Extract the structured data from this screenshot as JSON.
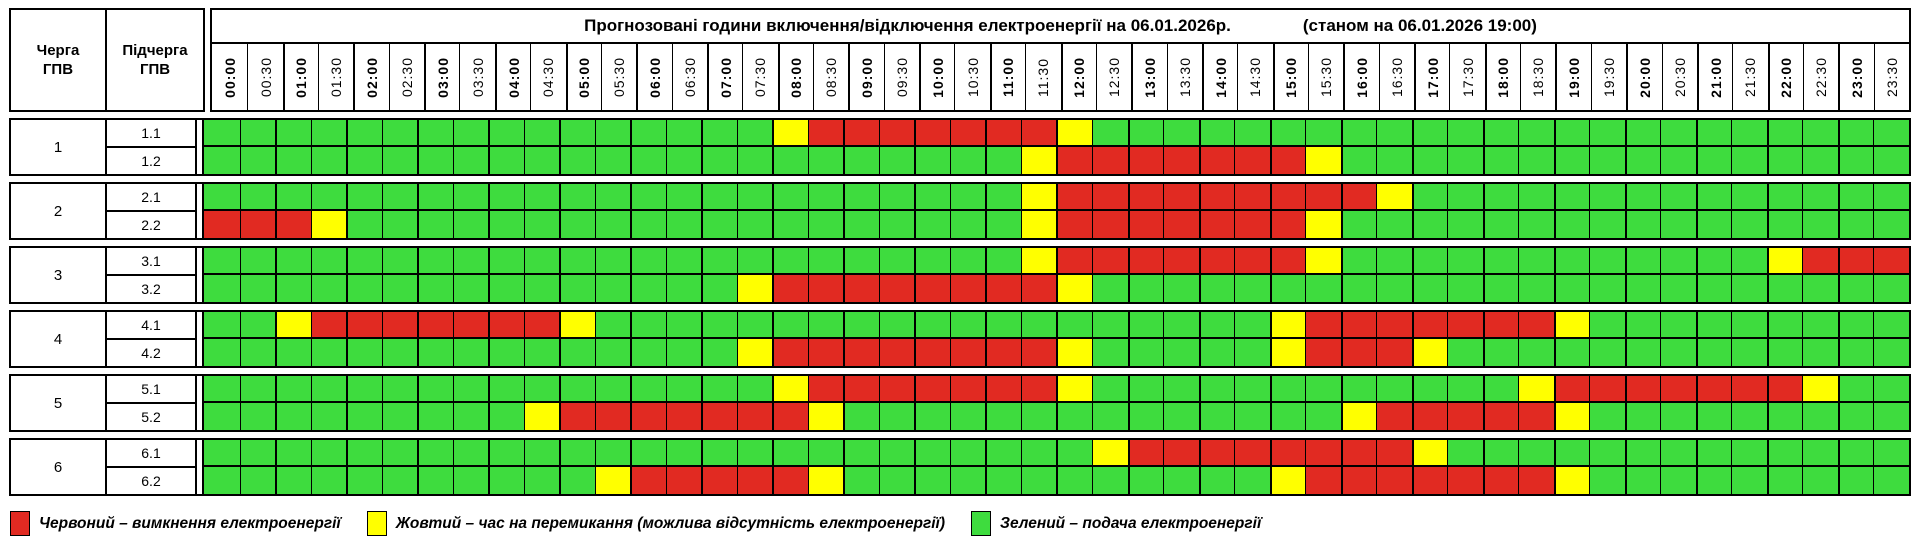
{
  "header": {
    "queue_col": "Черга\nГПВ",
    "subqueue_col": "Підчерга\nГПВ",
    "title": "Прогнозовані години включення/відключення електроенергії на 06.01.2026р.",
    "status": "(станом на 06.01.2026 19:00)"
  },
  "chart_data": {
    "type": "heatmap",
    "x": [
      "00:00",
      "00:30",
      "01:00",
      "01:30",
      "02:00",
      "02:30",
      "03:00",
      "03:30",
      "04:00",
      "04:30",
      "05:00",
      "05:30",
      "06:00",
      "06:30",
      "07:00",
      "07:30",
      "08:00",
      "08:30",
      "09:00",
      "09:30",
      "10:00",
      "10:30",
      "11:00",
      "11:30",
      "12:00",
      "12:30",
      "13:00",
      "13:30",
      "14:00",
      "14:30",
      "15:00",
      "15:30",
      "16:00",
      "16:30",
      "17:00",
      "17:30",
      "18:00",
      "18:30",
      "19:00",
      "19:30",
      "20:00",
      "20:30",
      "21:00",
      "21:30",
      "22:00",
      "22:30",
      "23:00",
      "23:30"
    ],
    "state_meaning": {
      "G": "подача електроенергії",
      "Y": "час на перемикання (можлива відсутність електроенергії)",
      "R": "вимкнення електроенергії"
    },
    "colors": {
      "G": "#3edc3e",
      "Y": "#ffff00",
      "R": "#e12a22"
    },
    "rows": [
      {
        "queue": "1",
        "sub": "1.1",
        "cells": "GGGGGGGGGGGGGGGGYRRRRRRRYGGGGGGGGGGGGGGGGGGGGGGG"
      },
      {
        "queue": "1",
        "sub": "1.2",
        "cells": "GGGGGGGGGGGGGGGGGGGGGGGYRRRRRRRYGGGGGGGGGGGGGGGG"
      },
      {
        "queue": "2",
        "sub": "2.1",
        "cells": "GGGGGGGGGGGGGGGGGGGGGGGYRRRRRRRRRYGGGGGGGGGGGGGG"
      },
      {
        "queue": "2",
        "sub": "2.2",
        "cells": "RRRYGGGGGGGGGGGGGGGGGGGYRRRRRRRYGGGGGGGGGGGGGGGG"
      },
      {
        "queue": "3",
        "sub": "3.1",
        "cells": "GGGGGGGGGGGGGGGGGGGGGGGYRRRRRRRYGGGGGGGGGGGGYRRR"
      },
      {
        "queue": "3",
        "sub": "3.2",
        "cells": "GGGGGGGGGGGGGGGYRRRRRRRRYGGGGGGGGGGGGGGGGGGGGGGG"
      },
      {
        "queue": "4",
        "sub": "4.1",
        "cells": "GGYRRRRRRRYGGGGGGGGGGGGGGGGGGGYRRRRRRRYGGGGGGGGG"
      },
      {
        "queue": "4",
        "sub": "4.2",
        "cells": "GGGGGGGGGGGGGGGYRRRRRRRRYGGGGGYRRRYGGGGGGGGGGGGG"
      },
      {
        "queue": "5",
        "sub": "5.1",
        "cells": "GGGGGGGGGGGGGGGGYRRRRRRRYGGGGGGGGGGGGYRRRRRRRYGG"
      },
      {
        "queue": "5",
        "sub": "5.2",
        "cells": "GGGGGGGGGYRRRRRRRYGGGGGGGGGGGGGGYRRRRRYGGGGGGGGG"
      },
      {
        "queue": "6",
        "sub": "6.1",
        "cells": "GGGGGGGGGGGGGGGGGGGGGGGGGYRRRRRRRRYGGGGGGGGGGGGG"
      },
      {
        "queue": "6",
        "sub": "6.2",
        "cells": "GGGGGGGGGGGYRRRRRYGGGGGGGGGGGGYRRRRRRRYGGGGGGGGG"
      }
    ]
  },
  "legend": [
    {
      "key": "R",
      "color": "#e12a22",
      "label": "Червоний – вимкнення електроенергії"
    },
    {
      "key": "Y",
      "color": "#ffff00",
      "label": "Жовтий – час на перемикання (можлива відсутність електроенергії)"
    },
    {
      "key": "G",
      "color": "#3edc3e",
      "label": "Зелений – подача електроенергії"
    }
  ]
}
